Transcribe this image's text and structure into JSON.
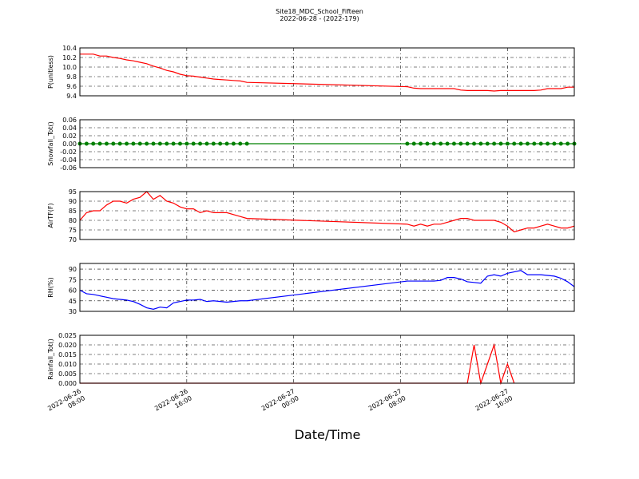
{
  "title": "Site18_MDC_School_Fifteen",
  "subtitle": "2022-06-28 - (2022-179)",
  "xlabel": "Date/Time",
  "x": [
    "2022-06-26 08:00",
    "2022-06-26 08:30",
    "2022-06-26 09:00",
    "2022-06-26 09:30",
    "2022-06-26 10:00",
    "2022-06-26 10:30",
    "2022-06-26 11:00",
    "2022-06-26 11:30",
    "2022-06-26 12:00",
    "2022-06-26 12:30",
    "2022-06-26 13:00",
    "2022-06-26 13:30",
    "2022-06-26 14:00",
    "2022-06-26 14:30",
    "2022-06-26 15:00",
    "2022-06-26 15:30",
    "2022-06-26 16:00",
    "2022-06-26 16:30",
    "2022-06-26 17:00",
    "2022-06-26 17:30",
    "2022-06-26 18:00",
    "2022-06-26 18:30",
    "2022-06-26 19:00",
    "2022-06-26 19:30",
    "2022-06-26 20:00",
    "2022-06-26 20:30",
    "2022-06-27 08:30",
    "2022-06-27 09:00",
    "2022-06-27 09:30",
    "2022-06-27 10:00",
    "2022-06-27 10:30",
    "2022-06-27 11:00",
    "2022-06-27 11:30",
    "2022-06-27 12:00",
    "2022-06-27 12:30",
    "2022-06-27 13:00",
    "2022-06-27 13:30",
    "2022-06-27 14:00",
    "2022-06-27 14:30",
    "2022-06-27 15:00",
    "2022-06-27 15:30",
    "2022-06-27 16:00",
    "2022-06-27 16:30",
    "2022-06-27 17:00",
    "2022-06-27 17:30",
    "2022-06-27 18:00",
    "2022-06-27 18:30",
    "2022-06-27 19:00",
    "2022-06-27 19:30",
    "2022-06-27 20:00",
    "2022-06-27 20:30",
    "2022-06-27 21:00"
  ],
  "xlim": [
    "2022-06-26 08:00",
    "2022-06-27 21:00"
  ],
  "xticks": [
    "2022-06-26 08:00",
    "2022-06-26 16:00",
    "2022-06-27 00:00",
    "2022-06-27 08:00",
    "2022-06-27 16:00"
  ],
  "grid": true,
  "chart_data": [
    {
      "type": "line",
      "ylabel": "P(unitless)",
      "ylim": [
        9.4,
        10.4
      ],
      "yticks": [
        9.4,
        9.6,
        9.8,
        {
          "value": 10,
          "label": "10.0"
        },
        10.2,
        10.4
      ],
      "series": [
        {
          "color": "#ff0000",
          "values": [
            10.27,
            10.27,
            10.27,
            10.23,
            10.23,
            10.2,
            10.18,
            10.15,
            10.13,
            10.1,
            10.07,
            10.02,
            9.98,
            9.93,
            9.9,
            9.85,
            9.82,
            9.81,
            9.79,
            9.77,
            9.75,
            9.74,
            9.73,
            9.72,
            9.71,
            9.68,
            9.59,
            9.56,
            9.55,
            9.55,
            9.55,
            9.55,
            9.55,
            9.55,
            9.52,
            9.51,
            9.51,
            9.51,
            9.51,
            9.5,
            9.51,
            9.51,
            9.51,
            9.51,
            9.51,
            9.51,
            9.52,
            9.55,
            9.55,
            9.55,
            9.58,
            9.58
          ]
        }
      ]
    },
    {
      "type": "line",
      "ylabel": "Snowfall_Tot()",
      "ylim": [
        -0.06,
        0.06
      ],
      "yticks": [
        -0.06,
        -0.04,
        -0.02,
        {
          "value": 0,
          "label": "0.00"
        },
        0.02,
        0.04,
        0.06
      ],
      "series": [
        {
          "color": "#008000",
          "marker": "o",
          "values": [
            0,
            0,
            0,
            0,
            0,
            0,
            0,
            0,
            0,
            0,
            0,
            0,
            0,
            0,
            0,
            0,
            0,
            0,
            0,
            0,
            0,
            0,
            0,
            0,
            0,
            0,
            0,
            0,
            0,
            0,
            0,
            0,
            0,
            0,
            0,
            0,
            0,
            0,
            0,
            0,
            0,
            0,
            0,
            0,
            0,
            0,
            0,
            0,
            0,
            0,
            0,
            0
          ]
        }
      ]
    },
    {
      "type": "line",
      "ylabel": "AirTF(F)",
      "ylim": [
        70,
        95
      ],
      "yticks": [
        70,
        75,
        80,
        85,
        90,
        95
      ],
      "series": [
        {
          "color": "#ff0000",
          "values": [
            80,
            84,
            85,
            85,
            88,
            90,
            90,
            89,
            91,
            92,
            95,
            91,
            93,
            90,
            89,
            87,
            86,
            86,
            84,
            85,
            84,
            84,
            84,
            83,
            82,
            81,
            78,
            77,
            78,
            77,
            78,
            78,
            79,
            80,
            81,
            81,
            80,
            80,
            80,
            80,
            79,
            77,
            74,
            75,
            76,
            76,
            77,
            78,
            77,
            76,
            76,
            77
          ]
        }
      ]
    },
    {
      "type": "line",
      "ylabel": "RH(%)",
      "ylim": [
        30,
        98
      ],
      "yticks": [
        30,
        45,
        60,
        75,
        90
      ],
      "series": [
        {
          "color": "#0000ff",
          "values": [
            60,
            55,
            54,
            52,
            50,
            48,
            47,
            46,
            44,
            40,
            35,
            33,
            36,
            35,
            42,
            44,
            46,
            46,
            47,
            44,
            45,
            44,
            43,
            44,
            45,
            45,
            73,
            73,
            73,
            73,
            73,
            74,
            78,
            78,
            76,
            72,
            71,
            70,
            80,
            82,
            80,
            84,
            86,
            88,
            82,
            82,
            82,
            81,
            80,
            77,
            72,
            65
          ]
        }
      ]
    },
    {
      "type": "line",
      "ylabel": "Rainfall_Tot()",
      "ylim": [
        0,
        0.025
      ],
      "yticks": [
        {
          "value": 0,
          "label": "0.000"
        },
        0.005,
        {
          "value": 0.01,
          "label": "0.010"
        },
        0.015,
        {
          "value": 0.02,
          "label": "0.020"
        },
        0.025
      ],
      "series": [
        {
          "color": "#ff0000",
          "values": [
            0,
            0,
            0,
            0,
            0,
            0,
            0,
            0,
            0,
            0,
            0,
            0,
            0,
            0,
            0,
            0,
            0,
            0,
            0,
            0,
            0,
            0,
            0,
            0,
            0,
            0,
            0,
            0,
            0,
            0,
            0,
            0,
            0,
            0,
            0,
            0,
            0.02,
            0,
            0.01,
            0.02,
            0,
            0.01,
            0,
            null,
            null,
            null,
            null,
            null,
            null,
            null,
            null,
            null
          ]
        }
      ]
    }
  ]
}
